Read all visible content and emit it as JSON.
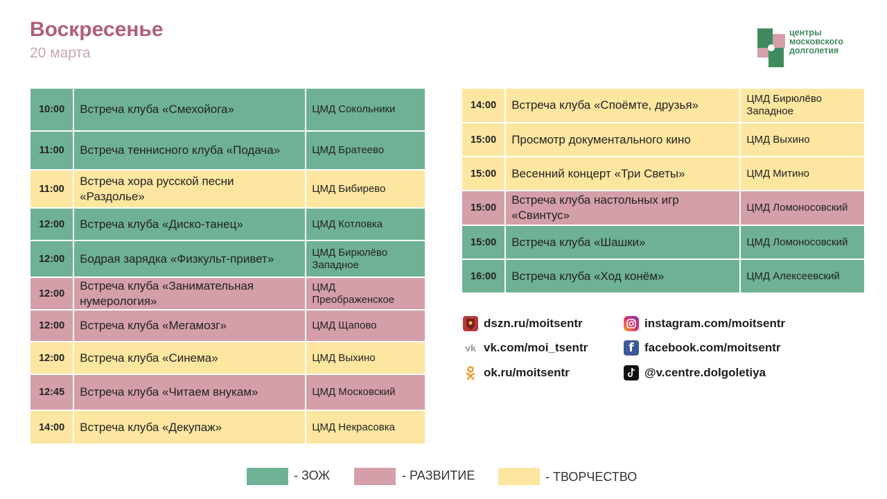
{
  "header": {
    "title": "Воскресенье",
    "date": "20 марта"
  },
  "logo": {
    "lines": [
      "центры",
      "московского",
      "долголетия"
    ]
  },
  "colors": {
    "zozh": "#6fb195",
    "razvitie": "#d49fa9",
    "tvorchestvo": "#fde6a0"
  },
  "table_left": [
    {
      "time": "10:00",
      "event": "Встреча клуба «Смехойога»",
      "place": "ЦМД Сокольники",
      "cat": "green",
      "h": 62
    },
    {
      "time": "11:00",
      "event": "Встреча теннисного клуба «Подача»",
      "place": "ЦМД Братеево",
      "cat": "green",
      "h": 56
    },
    {
      "time": "11:00",
      "event": "Встреча хора русской песни «Раздолье»",
      "place": "ЦМД Бибирево",
      "cat": "yellow",
      "h": 55
    },
    {
      "time": "12:00",
      "event": "Встреча клуба «Диско-танец»",
      "place": "ЦМД Котловка",
      "cat": "green",
      "h": 47
    },
    {
      "time": "12:00",
      "event": "Бодрая зарядка «Физкульт-привет»",
      "place": "ЦМД Бирюлёво Западное",
      "cat": "green",
      "h": 53
    },
    {
      "time": "12:00",
      "event": "Встреча клуба «Занимательная нумерология»",
      "place": "ЦМД Преображенское",
      "cat": "pink",
      "h": 47
    },
    {
      "time": "12:00",
      "event": "Встреча клуба «Мегамозг»",
      "place": "ЦМД Щапово",
      "cat": "pink",
      "h": 46
    },
    {
      "time": "12:00",
      "event": "Встреча клуба «Синема»",
      "place": "ЦМД Выхино",
      "cat": "yellow",
      "h": 47
    },
    {
      "time": "12:45",
      "event": "Встреча клуба «Читаем внукам»",
      "place": "ЦМД Московский",
      "cat": "pink",
      "h": 52
    },
    {
      "time": "14:00",
      "event": "Встреча клуба «Декупаж»",
      "place": "ЦМД Некрасовка",
      "cat": "yellow",
      "h": 49
    }
  ],
  "table_right": [
    {
      "time": "14:00",
      "event": "Встреча клуба «Споёмте, друзья»",
      "place": "ЦМД Бирюлёво Западное",
      "cat": "yellow",
      "h": 50
    },
    {
      "time": "15:00",
      "event": "Просмотр документального кино",
      "place": "ЦМД Выхино",
      "cat": "yellow",
      "h": 49
    },
    {
      "time": "15:00",
      "event": "Весенний концерт «Три Светы»",
      "place": "ЦМД Митино",
      "cat": "yellow",
      "h": 49
    },
    {
      "time": "15:00",
      "event": "Встреча клуба настольных игр «Свинтус»",
      "place": "ЦМД Ломоносовский",
      "cat": "pink",
      "h": 50
    },
    {
      "time": "15:00",
      "event": "Встреча клуба «Шашки»",
      "place": "ЦМД Ломоносовский",
      "cat": "green",
      "h": 49
    },
    {
      "time": "16:00",
      "event": "Встреча клуба «Ход конём»",
      "place": "ЦМД Алексеевский",
      "cat": "green",
      "h": 49
    }
  ],
  "links": [
    {
      "icon": "moscow-emblem-icon",
      "text": "dszn.ru/moitsentr"
    },
    {
      "icon": "vk-icon",
      "text": "vk.com/moi_tsentr"
    },
    {
      "icon": "odnoklassniki-icon",
      "text": "ok.ru/moitsentr"
    },
    {
      "icon": "instagram-icon",
      "text": "instagram.com/moitsentr"
    },
    {
      "icon": "facebook-icon",
      "text": "facebook.com/moitsentr"
    },
    {
      "icon": "tiktok-icon",
      "text": "@v.centre.dolgoletiya"
    }
  ],
  "legend": [
    {
      "label": "- ЗОЖ",
      "cat": "green"
    },
    {
      "label": "- РАЗВИТИЕ",
      "cat": "pink"
    },
    {
      "label": "- ТВОРЧЕСТВО",
      "cat": "yellow"
    }
  ]
}
